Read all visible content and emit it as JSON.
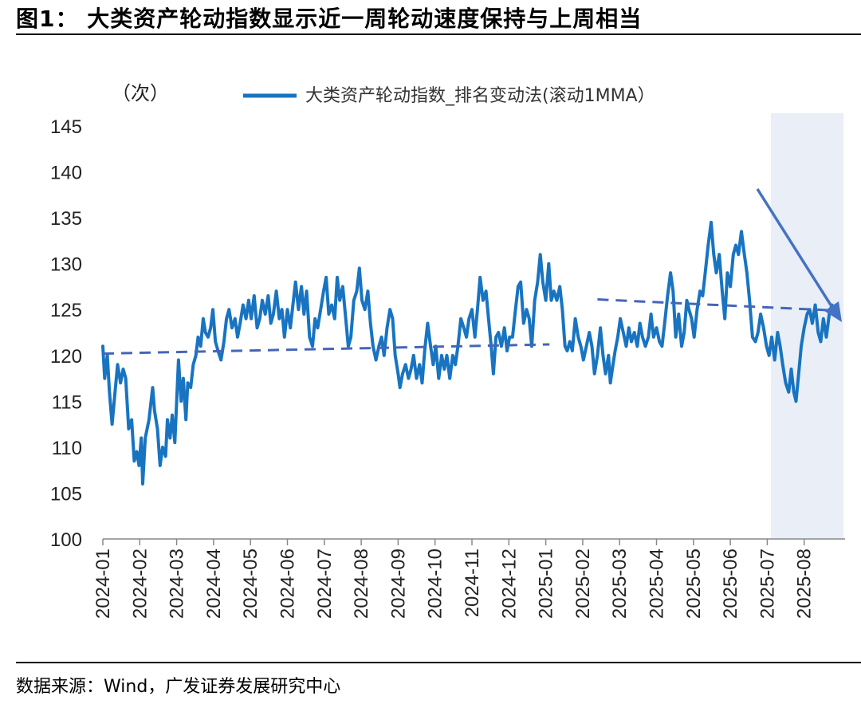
{
  "figure": {
    "title": "图1： 大类资产轮动指数显示近一周轮动速度保持与上周相当",
    "source": "数据来源：Wind，广发证券发展研究中心"
  },
  "colors": {
    "series": "#1874c1",
    "trend": "#4565b8",
    "arrow": "#4472c4",
    "highlight": "#e9eef7"
  },
  "chart_data": {
    "type": "line",
    "unit_label": "（次）",
    "legend": "大类资产轮动指数_排名变动法(滚动1MMA）",
    "ylim": [
      100,
      145
    ],
    "yticks": [
      100,
      105,
      110,
      115,
      120,
      125,
      130,
      135,
      140,
      145
    ],
    "x_tick_labels": [
      "2024-01",
      "2024-02",
      "2024-03",
      "2024-04",
      "2024-05",
      "2024-06",
      "2024-07",
      "2024-08",
      "2024-09",
      "2024-10",
      "2024-11",
      "2024-12",
      "2025-01",
      "2025-02",
      "2025-03",
      "2025-04",
      "2025-05",
      "2025-06",
      "2025-07",
      "2025-08"
    ],
    "x_range": [
      0,
      19.85
    ],
    "series": [
      {
        "name": "大类资产轮动指数_排名变动法(滚动1MMA）",
        "points": [
          [
            0.0,
            121.0
          ],
          [
            0.05,
            117.5
          ],
          [
            0.12,
            120.0
          ],
          [
            0.18,
            116.0
          ],
          [
            0.25,
            112.5
          ],
          [
            0.33,
            116.0
          ],
          [
            0.4,
            119.0
          ],
          [
            0.48,
            117.0
          ],
          [
            0.55,
            118.5
          ],
          [
            0.62,
            117.5
          ],
          [
            0.7,
            112.0
          ],
          [
            0.78,
            113.0
          ],
          [
            0.85,
            108.5
          ],
          [
            0.92,
            109.5
          ],
          [
            0.98,
            108.0
          ],
          [
            1.04,
            111.0
          ],
          [
            1.08,
            106.0
          ],
          [
            1.15,
            111.0
          ],
          [
            1.25,
            113.0
          ],
          [
            1.35,
            116.5
          ],
          [
            1.4,
            114.0
          ],
          [
            1.48,
            112.0
          ],
          [
            1.55,
            108.0
          ],
          [
            1.62,
            110.0
          ],
          [
            1.7,
            109.0
          ],
          [
            1.75,
            113.0
          ],
          [
            1.82,
            111.0
          ],
          [
            1.88,
            113.5
          ],
          [
            1.95,
            110.5
          ],
          [
            2.0,
            115.0
          ],
          [
            2.05,
            119.5
          ],
          [
            2.12,
            115.0
          ],
          [
            2.18,
            117.5
          ],
          [
            2.25,
            113.0
          ],
          [
            2.3,
            117.0
          ],
          [
            2.38,
            116.5
          ],
          [
            2.45,
            119.0
          ],
          [
            2.52,
            120.0
          ],
          [
            2.58,
            122.0
          ],
          [
            2.65,
            121.0
          ],
          [
            2.72,
            124.0
          ],
          [
            2.78,
            122.5
          ],
          [
            2.85,
            122.0
          ],
          [
            2.92,
            123.0
          ],
          [
            2.98,
            125.0
          ],
          [
            3.05,
            121.5
          ],
          [
            3.12,
            120.5
          ],
          [
            3.2,
            119.5
          ],
          [
            3.28,
            121.5
          ],
          [
            3.35,
            124.0
          ],
          [
            3.42,
            125.0
          ],
          [
            3.5,
            123.0
          ],
          [
            3.58,
            124.0
          ],
          [
            3.65,
            122.0
          ],
          [
            3.72,
            123.5
          ],
          [
            3.8,
            125.5
          ],
          [
            3.88,
            124.0
          ],
          [
            3.95,
            126.0
          ],
          [
            4.02,
            124.0
          ],
          [
            4.1,
            126.5
          ],
          [
            4.18,
            123.0
          ],
          [
            4.25,
            124.0
          ],
          [
            4.32,
            126.0
          ],
          [
            4.4,
            124.5
          ],
          [
            4.48,
            126.5
          ],
          [
            4.55,
            123.5
          ],
          [
            4.62,
            124.5
          ],
          [
            4.7,
            127.0
          ],
          [
            4.78,
            124.0
          ],
          [
            4.85,
            125.0
          ],
          [
            4.92,
            122.0
          ],
          [
            5.0,
            125.0
          ],
          [
            5.08,
            123.0
          ],
          [
            5.15,
            125.5
          ],
          [
            5.22,
            128.0
          ],
          [
            5.3,
            125.0
          ],
          [
            5.38,
            127.5
          ],
          [
            5.45,
            124.5
          ],
          [
            5.52,
            127.0
          ],
          [
            5.6,
            122.0
          ],
          [
            5.68,
            121.0
          ],
          [
            5.75,
            124.0
          ],
          [
            5.82,
            123.0
          ],
          [
            5.9,
            125.0
          ],
          [
            5.98,
            127.0
          ],
          [
            6.05,
            128.5
          ],
          [
            6.12,
            124.5
          ],
          [
            6.2,
            125.5
          ],
          [
            6.28,
            124.0
          ],
          [
            6.35,
            128.5
          ],
          [
            6.42,
            126.0
          ],
          [
            6.5,
            127.5
          ],
          [
            6.58,
            124.0
          ],
          [
            6.65,
            121.0
          ],
          [
            6.72,
            122.0
          ],
          [
            6.8,
            126.0
          ],
          [
            6.88,
            127.0
          ],
          [
            6.95,
            129.5
          ],
          [
            7.02,
            126.0
          ],
          [
            7.1,
            125.0
          ],
          [
            7.18,
            127.0
          ],
          [
            7.25,
            123.5
          ],
          [
            7.32,
            121.0
          ],
          [
            7.4,
            119.5
          ],
          [
            7.48,
            121.0
          ],
          [
            7.55,
            122.0
          ],
          [
            7.62,
            120.0
          ],
          [
            7.7,
            123.0
          ],
          [
            7.78,
            125.0
          ],
          [
            7.85,
            124.0
          ],
          [
            7.92,
            120.0
          ],
          [
            8.0,
            118.0
          ],
          [
            8.05,
            116.5
          ],
          [
            8.12,
            118.0
          ],
          [
            8.2,
            119.0
          ],
          [
            8.28,
            117.5
          ],
          [
            8.35,
            118.5
          ],
          [
            8.42,
            120.0
          ],
          [
            8.5,
            117.5
          ],
          [
            8.58,
            119.0
          ],
          [
            8.65,
            117.0
          ],
          [
            8.72,
            120.5
          ],
          [
            8.8,
            123.5
          ],
          [
            8.88,
            121.0
          ],
          [
            8.95,
            119.0
          ],
          [
            9.02,
            121.0
          ],
          [
            9.1,
            117.5
          ],
          [
            9.18,
            120.0
          ],
          [
            9.25,
            118.5
          ],
          [
            9.32,
            120.0
          ],
          [
            9.4,
            117.5
          ],
          [
            9.48,
            120.0
          ],
          [
            9.55,
            119.0
          ],
          [
            9.62,
            121.0
          ],
          [
            9.7,
            124.0
          ],
          [
            9.78,
            123.0
          ],
          [
            9.85,
            122.0
          ],
          [
            9.92,
            124.0
          ],
          [
            10.0,
            125.0
          ],
          [
            10.08,
            122.0
          ],
          [
            10.15,
            125.0
          ],
          [
            10.22,
            128.5
          ],
          [
            10.3,
            126.0
          ],
          [
            10.38,
            127.0
          ],
          [
            10.45,
            124.0
          ],
          [
            10.52,
            121.0
          ],
          [
            10.58,
            118.0
          ],
          [
            10.65,
            122.0
          ],
          [
            10.72,
            122.5
          ],
          [
            10.8,
            121.0
          ],
          [
            10.88,
            123.0
          ],
          [
            10.95,
            120.5
          ],
          [
            11.02,
            122.0
          ],
          [
            11.1,
            122.0
          ],
          [
            11.18,
            125.0
          ],
          [
            11.25,
            127.5
          ],
          [
            11.32,
            128.0
          ],
          [
            11.4,
            123.5
          ],
          [
            11.48,
            125.0
          ],
          [
            11.55,
            124.0
          ],
          [
            11.62,
            121.0
          ],
          [
            11.7,
            126.0
          ],
          [
            11.78,
            128.0
          ],
          [
            11.85,
            131.0
          ],
          [
            11.92,
            128.0
          ],
          [
            12.0,
            126.0
          ],
          [
            12.08,
            130.0
          ],
          [
            12.15,
            126.0
          ],
          [
            12.22,
            127.0
          ],
          [
            12.3,
            126.0
          ],
          [
            12.38,
            127.5
          ],
          [
            12.45,
            125.0
          ],
          [
            12.52,
            121.0
          ],
          [
            12.58,
            120.5
          ],
          [
            12.65,
            121.5
          ],
          [
            12.72,
            120.5
          ],
          [
            12.8,
            124.0
          ],
          [
            12.88,
            122.0
          ],
          [
            12.95,
            121.0
          ],
          [
            13.02,
            119.5
          ],
          [
            13.1,
            121.0
          ],
          [
            13.18,
            122.5
          ],
          [
            13.25,
            121.0
          ],
          [
            13.32,
            118.0
          ],
          [
            13.4,
            120.0
          ],
          [
            13.48,
            123.0
          ],
          [
            13.55,
            120.0
          ],
          [
            13.62,
            118.0
          ],
          [
            13.7,
            120.0
          ],
          [
            13.75,
            117.0
          ],
          [
            13.82,
            119.0
          ],
          [
            13.88,
            120.5
          ],
          [
            13.95,
            122.0
          ],
          [
            14.02,
            124.0
          ],
          [
            14.1,
            122.5
          ],
          [
            14.18,
            121.0
          ],
          [
            14.25,
            123.0
          ],
          [
            14.32,
            121.5
          ],
          [
            14.4,
            122.5
          ],
          [
            14.48,
            121.0
          ],
          [
            14.55,
            123.5
          ],
          [
            14.62,
            122.0
          ],
          [
            14.7,
            121.0
          ],
          [
            14.78,
            122.0
          ],
          [
            14.85,
            124.5
          ],
          [
            14.92,
            122.0
          ],
          [
            15.0,
            123.0
          ],
          [
            15.08,
            121.5
          ],
          [
            15.15,
            121.0
          ],
          [
            15.22,
            123.5
          ],
          [
            15.3,
            126.5
          ],
          [
            15.38,
            129.0
          ],
          [
            15.45,
            127.0
          ],
          [
            15.52,
            122.0
          ],
          [
            15.6,
            124.5
          ],
          [
            15.68,
            121.0
          ],
          [
            15.75,
            122.5
          ],
          [
            15.82,
            126.0
          ],
          [
            15.88,
            125.0
          ],
          [
            15.95,
            124.0
          ],
          [
            16.02,
            122.0
          ],
          [
            16.1,
            125.0
          ],
          [
            16.18,
            127.0
          ],
          [
            16.25,
            126.5
          ],
          [
            16.32,
            129.0
          ],
          [
            16.4,
            132.0
          ],
          [
            16.48,
            134.5
          ],
          [
            16.55,
            131.0
          ],
          [
            16.62,
            129.0
          ],
          [
            16.7,
            131.0
          ],
          [
            16.78,
            127.0
          ],
          [
            16.85,
            124.0
          ],
          [
            16.92,
            129.0
          ],
          [
            17.0,
            127.5
          ],
          [
            17.08,
            131.0
          ],
          [
            17.15,
            132.0
          ],
          [
            17.22,
            131.0
          ],
          [
            17.3,
            133.5
          ],
          [
            17.38,
            131.0
          ],
          [
            17.45,
            129.0
          ],
          [
            17.52,
            126.0
          ],
          [
            17.6,
            122.0
          ],
          [
            17.68,
            121.5
          ],
          [
            17.75,
            122.5
          ],
          [
            17.82,
            124.5
          ],
          [
            17.9,
            123.0
          ],
          [
            17.98,
            121.0
          ],
          [
            18.05,
            120.0
          ],
          [
            18.12,
            122.0
          ],
          [
            18.2,
            119.5
          ],
          [
            18.28,
            122.5
          ],
          [
            18.35,
            121.0
          ],
          [
            18.42,
            119.0
          ],
          [
            18.5,
            117.0
          ],
          [
            18.58,
            116.0
          ],
          [
            18.65,
            118.5
          ],
          [
            18.72,
            116.0
          ],
          [
            18.78,
            115.0
          ],
          [
            18.85,
            118.0
          ],
          [
            18.92,
            121.0
          ],
          [
            19.0,
            123.0
          ],
          [
            19.08,
            124.5
          ],
          [
            19.15,
            125.0
          ],
          [
            19.22,
            123.5
          ],
          [
            19.3,
            125.5
          ],
          [
            19.38,
            122.5
          ],
          [
            19.45,
            121.5
          ],
          [
            19.52,
            124.0
          ],
          [
            19.6,
            122.0
          ],
          [
            19.68,
            124.5
          ],
          [
            19.75,
            125.5
          ]
        ]
      }
    ]
  }
}
